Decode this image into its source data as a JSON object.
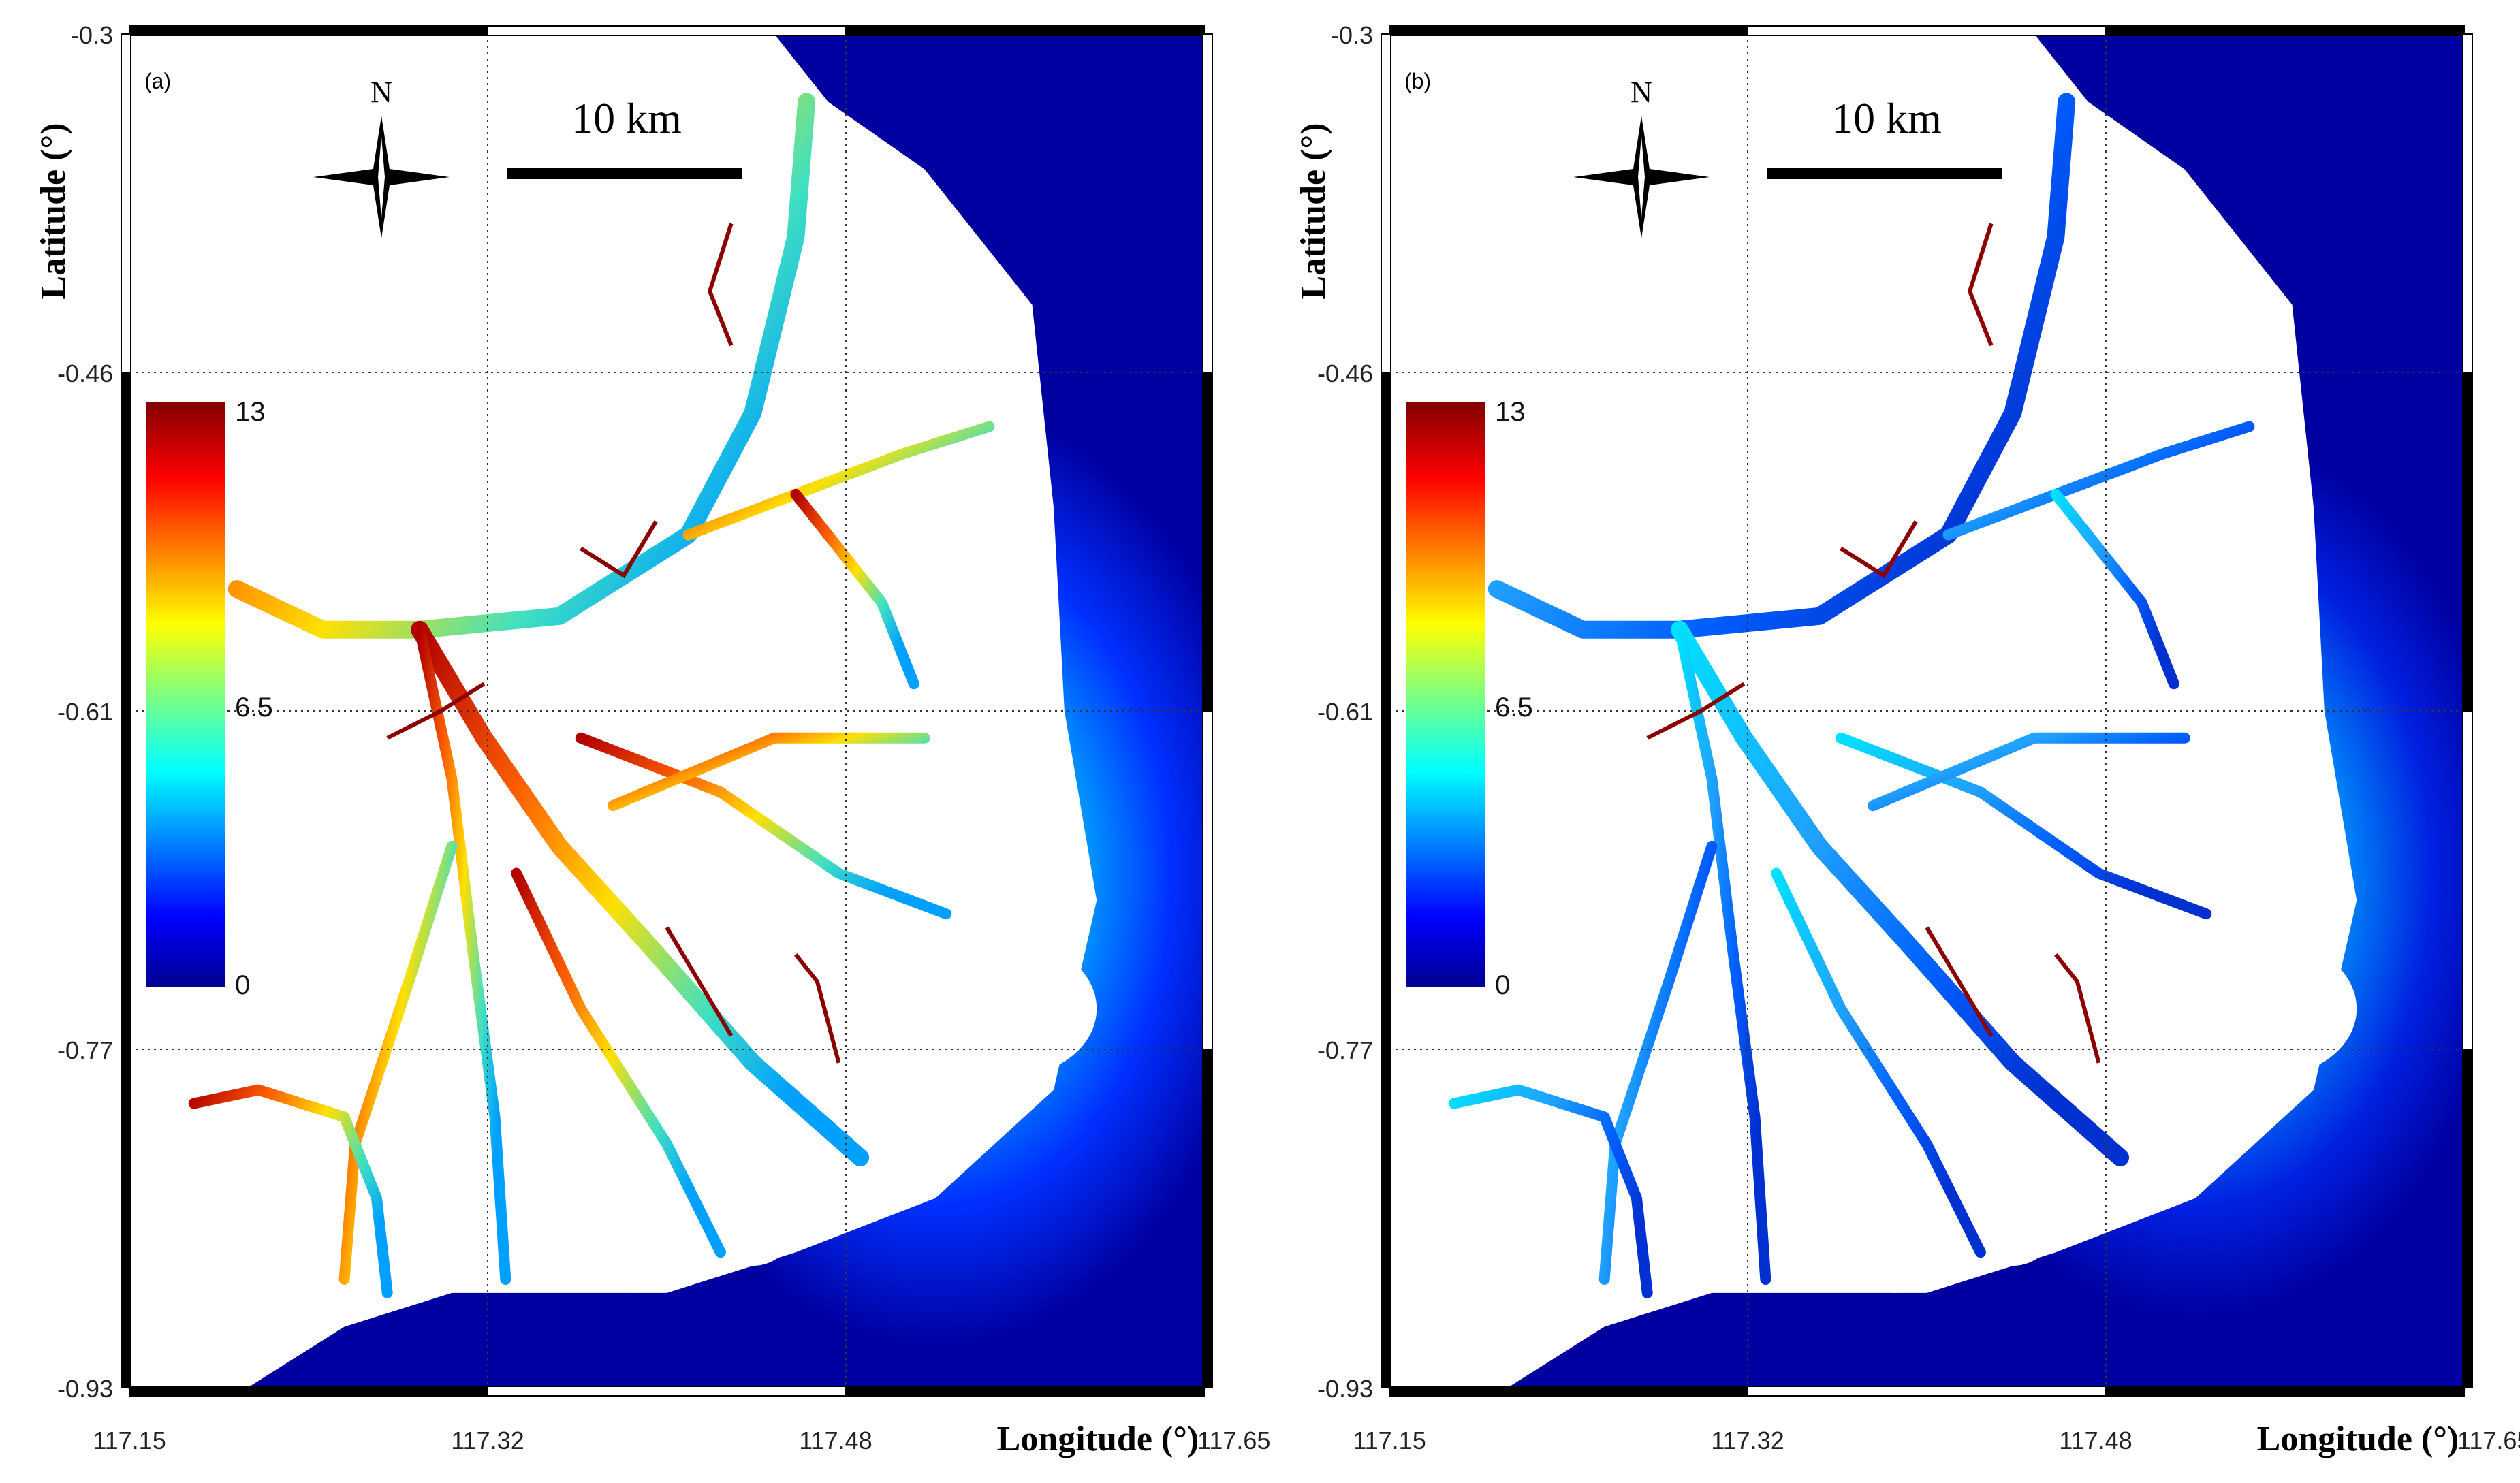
{
  "figure": {
    "x_axis_title": "Longitude (°)",
    "y_axis_title": "Latitude (°)",
    "x_ticks": [
      "117.15",
      "117.32",
      "117.48",
      "117.65"
    ],
    "y_ticks": [
      "-0.3",
      "-0.46",
      "-0.61",
      "-0.77",
      "-0.93"
    ]
  },
  "panels": [
    {
      "label": "(a)",
      "north": "N",
      "scale_bar": "10 km",
      "colorbar": {
        "max": "13",
        "mid": "6.5",
        "min": "0"
      },
      "channel_level": "high"
    },
    {
      "label": "(b)",
      "north": "N",
      "scale_bar": "10 km",
      "colorbar": {
        "max": "13",
        "mid": "6.5",
        "min": "0"
      },
      "channel_level": "low"
    }
  ],
  "colormap": [
    "#00008f",
    "#0000ff",
    "#00ffff",
    "#ffff00",
    "#ff0000",
    "#800000"
  ],
  "colors": {
    "ocean": "#0000a0",
    "land": "#ffffff"
  }
}
